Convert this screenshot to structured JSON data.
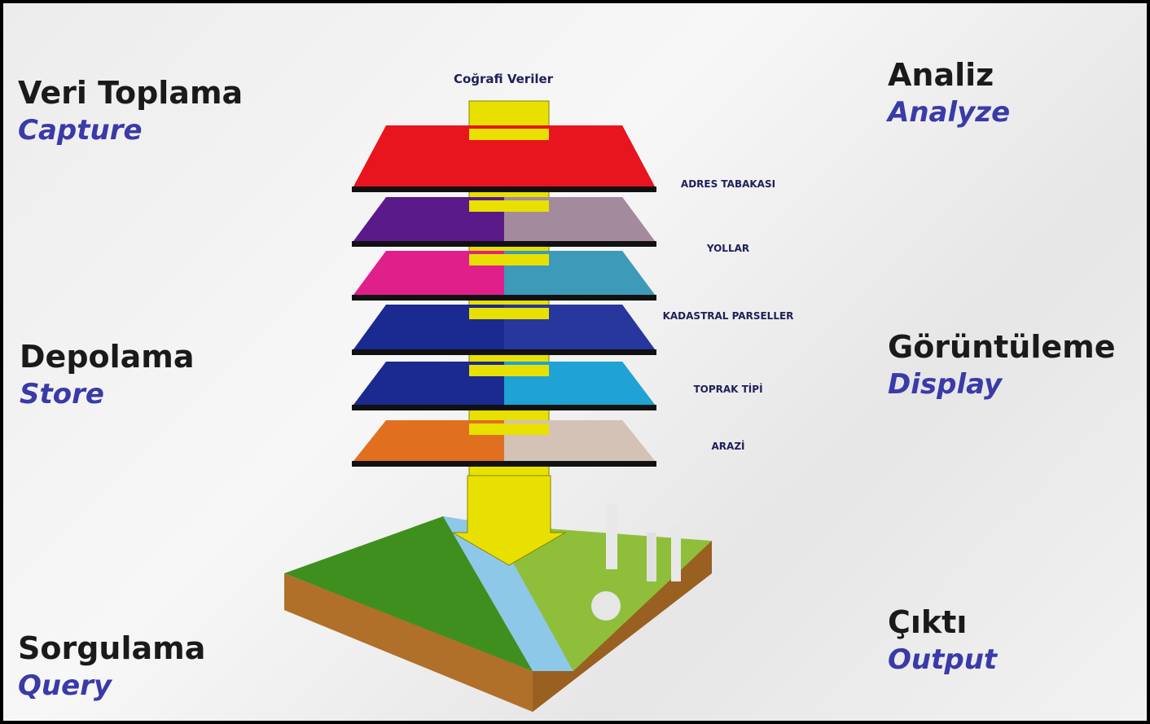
{
  "left": [
    {
      "title": "Veri Toplama",
      "subtitle": "Capture"
    },
    {
      "title": "Depolama",
      "subtitle": "Store"
    },
    {
      "title": "Sorgulama",
      "subtitle": "Query"
    }
  ],
  "right": [
    {
      "title": "Analiz",
      "subtitle": "Analyze"
    },
    {
      "title": "Görüntüleme",
      "subtitle": "Display"
    },
    {
      "title": "Çıktı",
      "subtitle": "Output"
    }
  ],
  "diagram": {
    "title": "Coğrafi Veriler",
    "layers": [
      "ADRES TABAKASI",
      "YOLLAR",
      "KADASTRAL PARSELLER",
      "TOPRAK TİPİ",
      "ARAZİ"
    ]
  }
}
